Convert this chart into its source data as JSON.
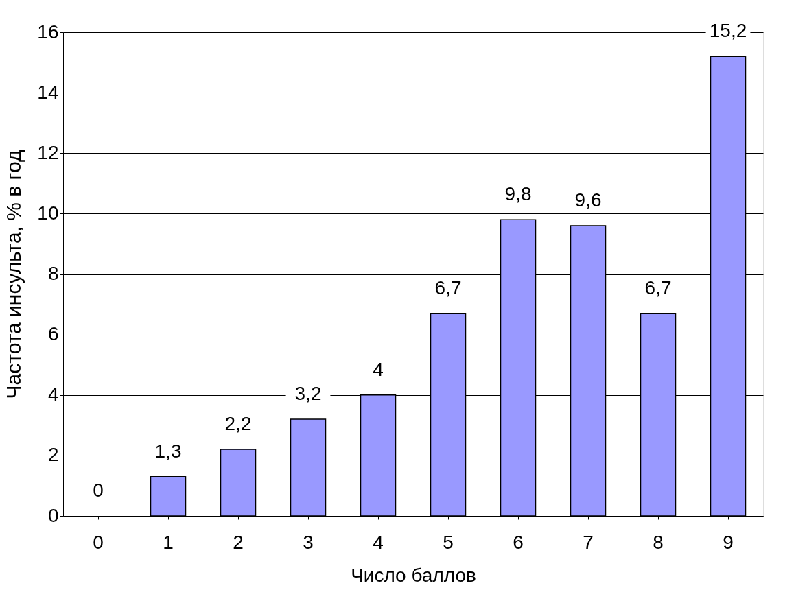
{
  "chart_data": {
    "type": "bar",
    "xlabel": "Число баллов",
    "ylabel": "Частота инсульта,  % в год",
    "categories": [
      "0",
      "1",
      "2",
      "3",
      "4",
      "5",
      "6",
      "7",
      "8",
      "9"
    ],
    "values": [
      0,
      1.3,
      2.2,
      3.2,
      4,
      6.7,
      9.8,
      9.6,
      6.7,
      15.2
    ],
    "value_labels": [
      "0",
      "1,3",
      "2,2",
      "3,2",
      "4",
      "6,7",
      "9,8",
      "9,6",
      "6,7",
      "15,2"
    ],
    "color": "#9999ff",
    "ylim": [
      0,
      16
    ],
    "yticks": [
      0,
      2,
      4,
      6,
      8,
      10,
      12,
      14,
      16
    ],
    "grid": "y"
  }
}
